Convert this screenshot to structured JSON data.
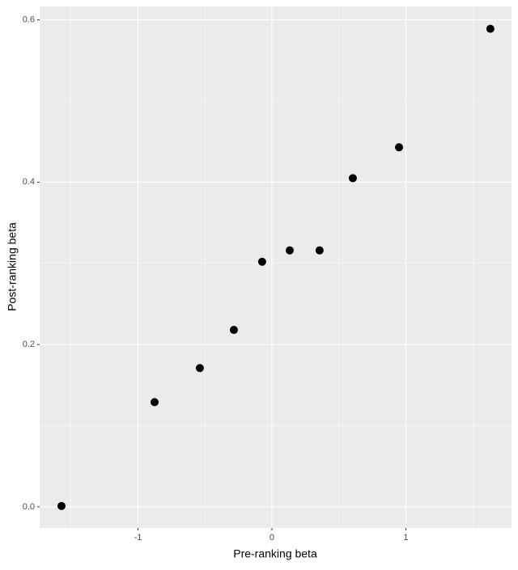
{
  "chart_data": {
    "type": "scatter",
    "x_label": "Pre-ranking beta",
    "y_label": "Post-ranking beta",
    "x": [
      -1.571,
      -0.876,
      -0.538,
      -0.284,
      -0.073,
      0.133,
      0.356,
      0.604,
      0.949,
      1.631
    ],
    "series": [
      {
        "color": "#000000",
        "values": [
          0.001,
          0.129,
          0.171,
          0.218,
          0.302,
          0.316,
          0.316,
          0.405,
          0.443,
          0.589
        ]
      }
    ],
    "xlim": [
      -1.734,
      1.789
    ],
    "ylim": [
      -0.026,
      0.6165
    ],
    "xticks": [
      -1,
      0,
      1
    ],
    "yticks": [
      {
        "value": 0,
        "label": "0.0"
      },
      0.2,
      0.4,
      0.6
    ],
    "x_minor_ticks": [
      -1.5,
      -0.5,
      0.5,
      1.5
    ],
    "y_minor_ticks": [
      0.1,
      0.3,
      0.5
    ],
    "grid": true
  }
}
